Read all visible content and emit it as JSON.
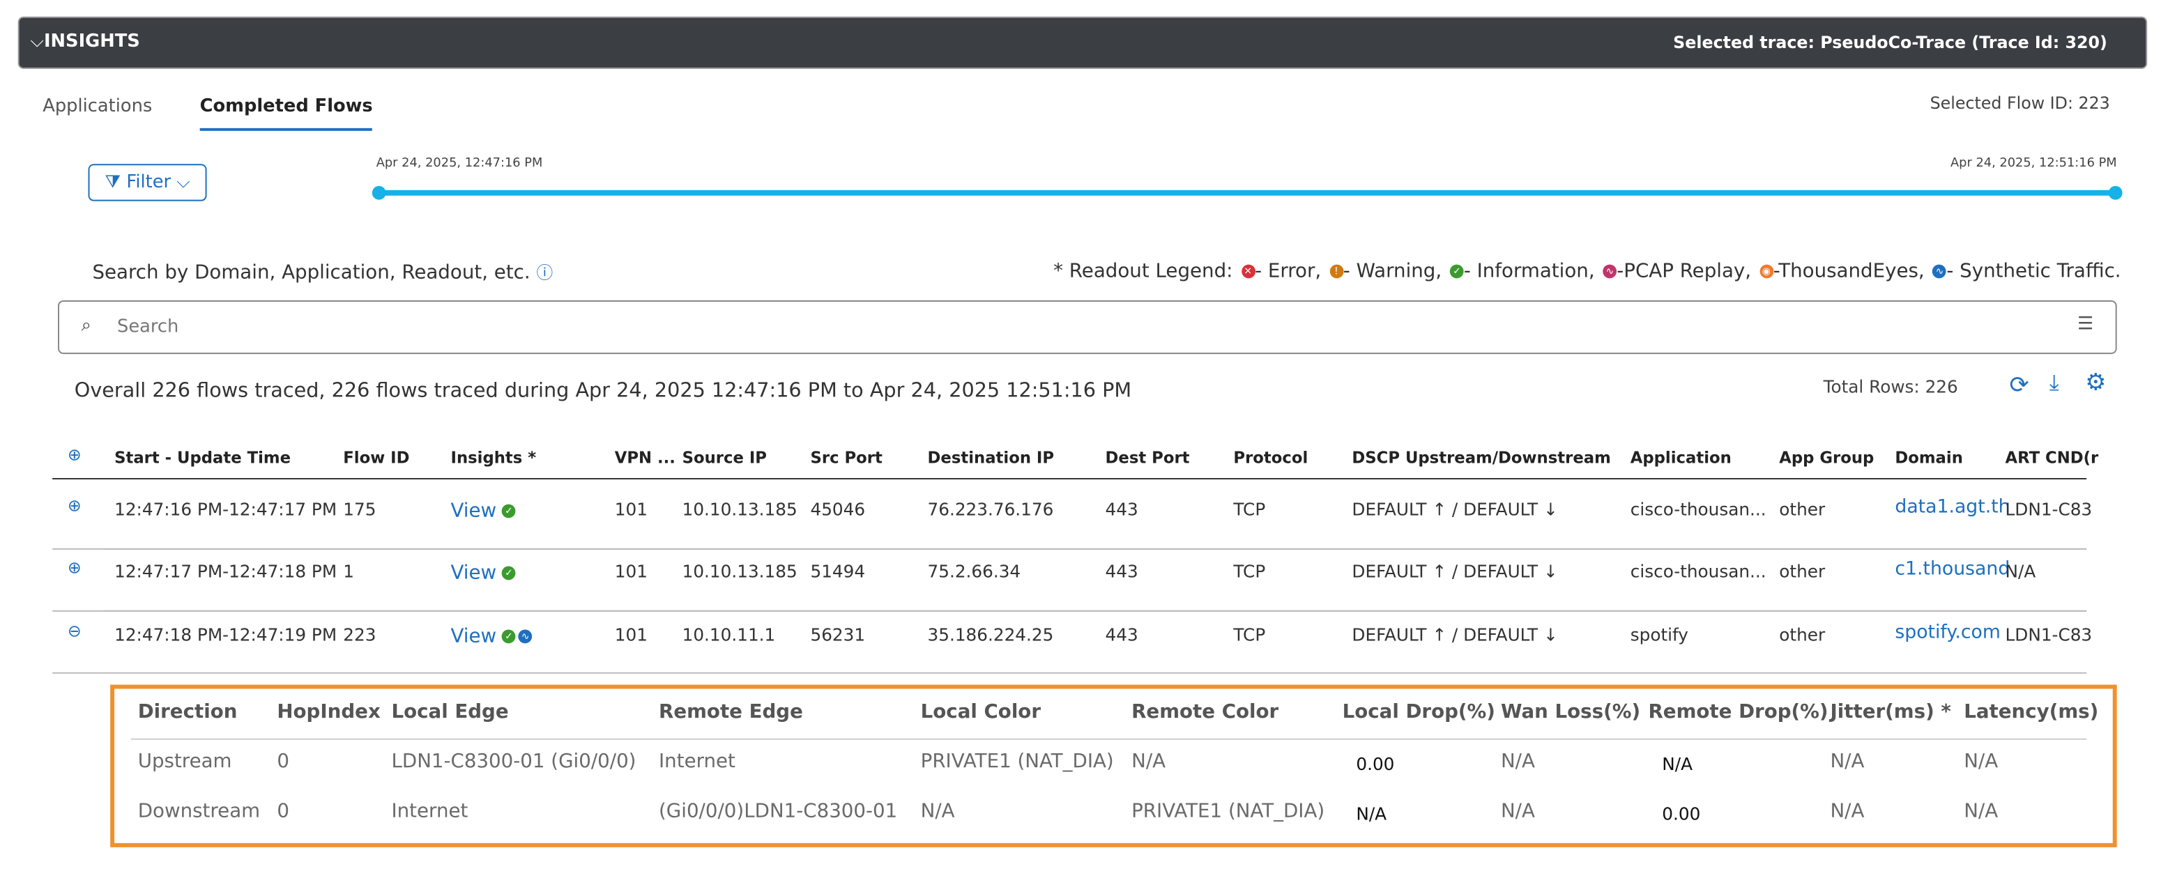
{
  "header": {
    "title": "INSIGHTS",
    "selected_trace": "Selected trace: PseudoCo-Trace (Trace Id: 320)"
  },
  "tabs": [
    "Applications",
    "Completed Flows"
  ],
  "selected_flow": "Selected Flow ID: 223",
  "filter": "Filter",
  "timeline": {
    "start": "Apr 24, 2025, 12:47:16 PM",
    "end": "Apr 24, 2025, 12:51:16 PM"
  },
  "search_hint": "Search by Domain, Application, Readout, etc.",
  "legend": {
    "prefix": "* Readout Legend:",
    "items": [
      "- Error,",
      "- Warning,",
      "- Information,",
      "-PCAP Replay,",
      "-ThousandEyes,",
      "- Synthetic Traffic."
    ]
  },
  "search_placeholder": "Search",
  "summary": "Overall 226 flows traced, 226 flows traced during Apr 24, 2025 12:47:16 PM to Apr 24, 2025 12:51:16 PM",
  "total_rows": "Total Rows: 226",
  "table": {
    "columns": [
      "Start - Update Time",
      "Flow ID",
      "Insights *",
      "VPN ...",
      "Source IP",
      "Src Port",
      "Destination IP",
      "Dest Port",
      "Protocol",
      "DSCP Upstream/Downstream",
      "Application",
      "App Group",
      "Domain",
      "ART CND(r"
    ],
    "rows": [
      [
        "12:47:16 PM-12:47:17 PM",
        "175",
        "View",
        "101",
        "10.10.13.185",
        "45046",
        "76.223.76.176",
        "443",
        "TCP",
        "DEFAULT ↑ / DEFAULT ↓",
        "cisco-thousan...",
        "other",
        "data1.agt.th",
        "LDN1-C83"
      ],
      [
        "12:47:17 PM-12:47:18 PM",
        "1",
        "View",
        "101",
        "10.10.13.185",
        "51494",
        "75.2.66.34",
        "443",
        "TCP",
        "DEFAULT ↑ / DEFAULT ↓",
        "cisco-thousan...",
        "other",
        "c1.thousand",
        "N/A"
      ],
      [
        "12:47:18 PM-12:47:19 PM",
        "223",
        "View",
        "101",
        "10.10.11.1",
        "56231",
        "35.186.224.25",
        "443",
        "TCP",
        "DEFAULT ↑ / DEFAULT ↓",
        "spotify",
        "other",
        "spotify.com",
        "LDN1-C83"
      ]
    ]
  },
  "detail": {
    "columns": [
      "Direction",
      "HopIndex",
      "Local Edge",
      "Remote Edge",
      "Local Color",
      "Remote Color",
      "Local Drop(%)",
      "Wan Loss(%)",
      "Remote Drop(%)",
      "Jitter(ms) *",
      "Latency(ms)"
    ],
    "rows": [
      [
        "Upstream",
        "0",
        "LDN1-C8300-01 (Gi0/0/0)",
        "Internet",
        "PRIVATE1 (NAT_DIA)",
        "N/A",
        "0.00",
        "N/A",
        "N/A",
        "N/A",
        "N/A"
      ],
      [
        "Downstream",
        "0",
        "Internet",
        "(Gi0/0/0)LDN1-C8300-01",
        "N/A",
        "PRIVATE1 (NAT_DIA)",
        "N/A",
        "N/A",
        "0.00",
        "N/A",
        "N/A"
      ]
    ]
  }
}
